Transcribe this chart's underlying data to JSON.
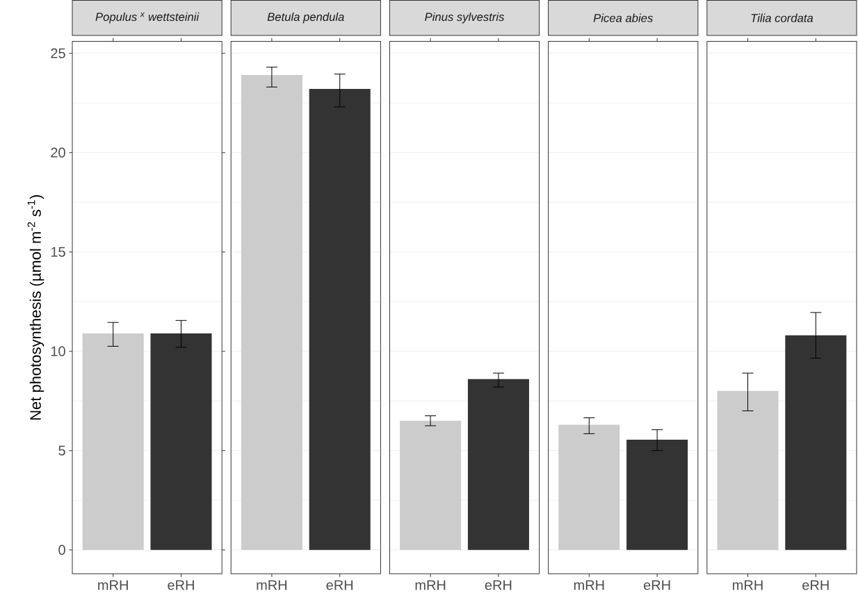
{
  "chart_data": [
    {
      "type": "bar",
      "title": "Populus $^{x}$ wettsteinii",
      "ylabel": "Net photosynthesis (µmol m$^{-2}$ s$^{-1}$)",
      "categories": [
        "mRH",
        "eRH"
      ],
      "values": [
        10.9,
        10.9
      ],
      "colors": [
        "#cccccc",
        "#333333"
      ],
      "errors": [
        [
          10.25,
          11.45
        ],
        [
          10.2,
          11.55
        ]
      ],
      "ylim": [
        -1.2,
        25.6
      ],
      "yticks": [
        0,
        5,
        10,
        15,
        20,
        25
      ],
      "grid": "y"
    },
    {
      "type": "bar",
      "title": "Betula pendula",
      "categories": [
        "mRH",
        "eRH"
      ],
      "values": [
        23.9,
        23.2
      ],
      "colors": [
        "#cccccc",
        "#333333"
      ],
      "errors": [
        [
          23.3,
          24.3
        ],
        [
          22.3,
          23.95
        ]
      ],
      "ylim": [
        -1.2,
        25.6
      ],
      "yticks": [
        0,
        5,
        10,
        15,
        20,
        25
      ],
      "grid": "y",
      "tick_labels": "x"
    },
    {
      "type": "bar",
      "title": "Pinus sylvestris",
      "categories": [
        "mRH",
        "eRH"
      ],
      "values": [
        6.5,
        8.6
      ],
      "colors": [
        "#cccccc",
        "#333333"
      ],
      "errors": [
        [
          6.25,
          6.75
        ],
        [
          8.2,
          8.9
        ]
      ],
      "ylim": [
        -1.2,
        25.6
      ],
      "yticks": [
        0,
        5,
        10,
        15,
        20,
        25
      ],
      "grid": "y",
      "tick_labels": "x"
    },
    {
      "type": "bar",
      "title": "Picea abies",
      "categories": [
        "mRH",
        "eRH"
      ],
      "values": [
        6.3,
        5.55
      ],
      "colors": [
        "#cccccc",
        "#333333"
      ],
      "errors": [
        [
          5.85,
          6.65
        ],
        [
          5.0,
          6.05
        ]
      ],
      "ylim": [
        -1.2,
        25.6
      ],
      "yticks": [
        0,
        5,
        10,
        15,
        20,
        25
      ],
      "grid": "y",
      "tick_labels": "x"
    },
    {
      "type": "bar",
      "title": "Tilia cordata",
      "categories": [
        "mRH",
        "eRH"
      ],
      "values": [
        8.0,
        10.8
      ],
      "colors": [
        "#cccccc",
        "#333333"
      ],
      "errors": [
        [
          7.0,
          8.9
        ],
        [
          9.65,
          11.95
        ]
      ],
      "ylim": [
        -1.2,
        25.6
      ],
      "yticks": [
        0,
        5,
        10,
        15,
        20,
        25
      ],
      "grid": "y",
      "tick_labels": "x"
    }
  ]
}
